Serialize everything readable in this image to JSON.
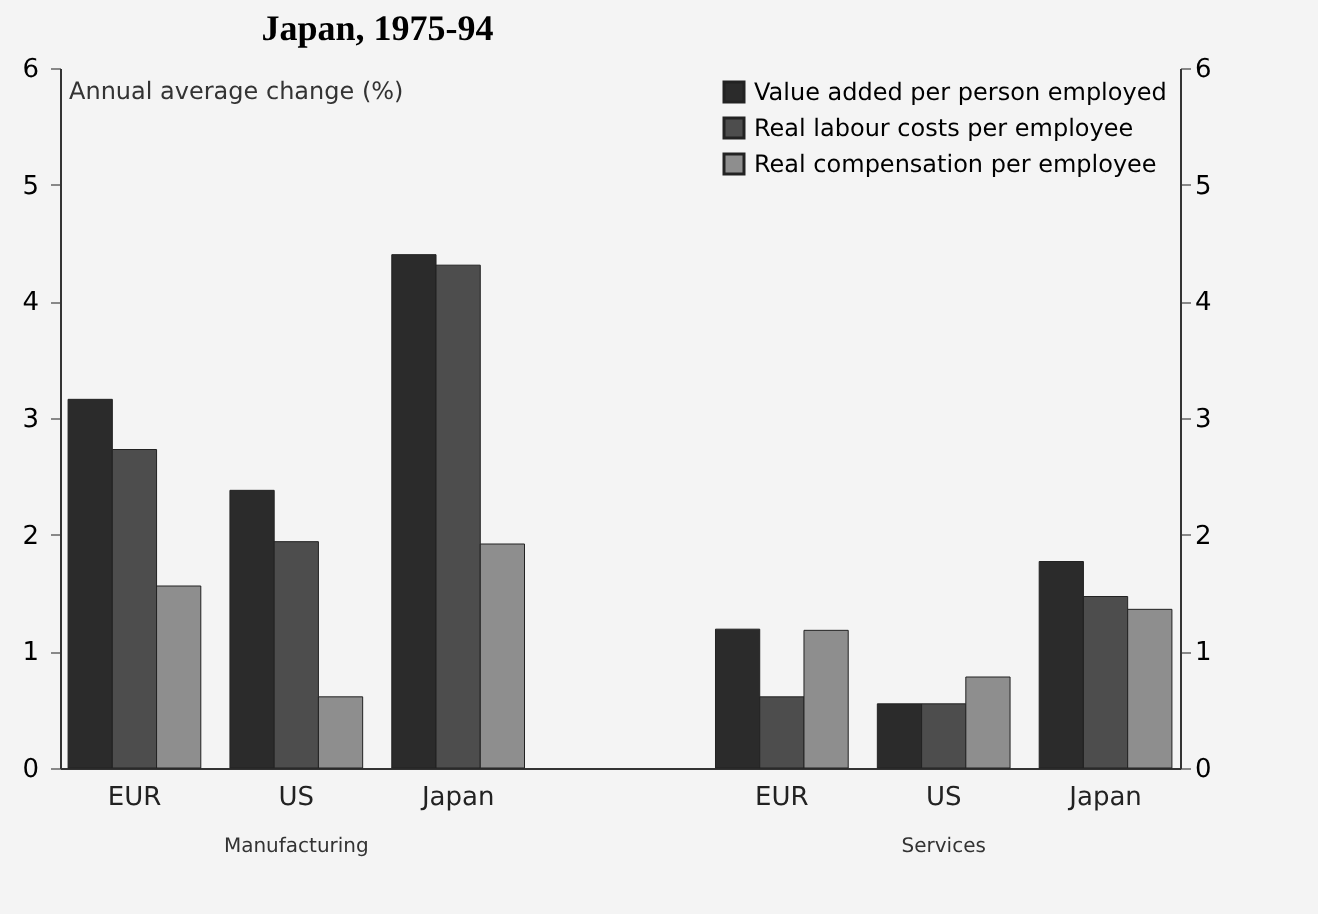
{
  "chart_data": {
    "type": "bar",
    "title": "Japan, 1975-94",
    "ylabel": "Annual average change (%)",
    "categories": [
      "EUR",
      "US",
      "Japan",
      null,
      "EUR",
      "US",
      "Japan"
    ],
    "series": [
      {
        "name": "Value added per person employed",
        "color": "#2b2b2b",
        "values": [
          3.16,
          2.38,
          4.4,
          null,
          1.19,
          0.55,
          1.77
        ]
      },
      {
        "name": "Real labour costs per employee",
        "color": "#4d4d4d",
        "values": [
          2.73,
          1.94,
          4.31,
          null,
          0.61,
          0.55,
          1.47
        ]
      },
      {
        "name": "Real compensation per employee",
        "color": "#8e8e8e",
        "values": [
          1.56,
          0.61,
          1.92,
          null,
          1.18,
          0.78,
          1.36
        ]
      }
    ],
    "ylim": [
      0,
      6
    ],
    "yticks": [
      0,
      1,
      2,
      3,
      4,
      5,
      6
    ],
    "y2lim": [
      0,
      6
    ],
    "y2ticks": [
      0,
      1,
      2,
      3,
      4,
      5,
      6
    ],
    "legend": "top right",
    "grid": false,
    "annotations": [
      "Manufacturing",
      "Services"
    ]
  }
}
